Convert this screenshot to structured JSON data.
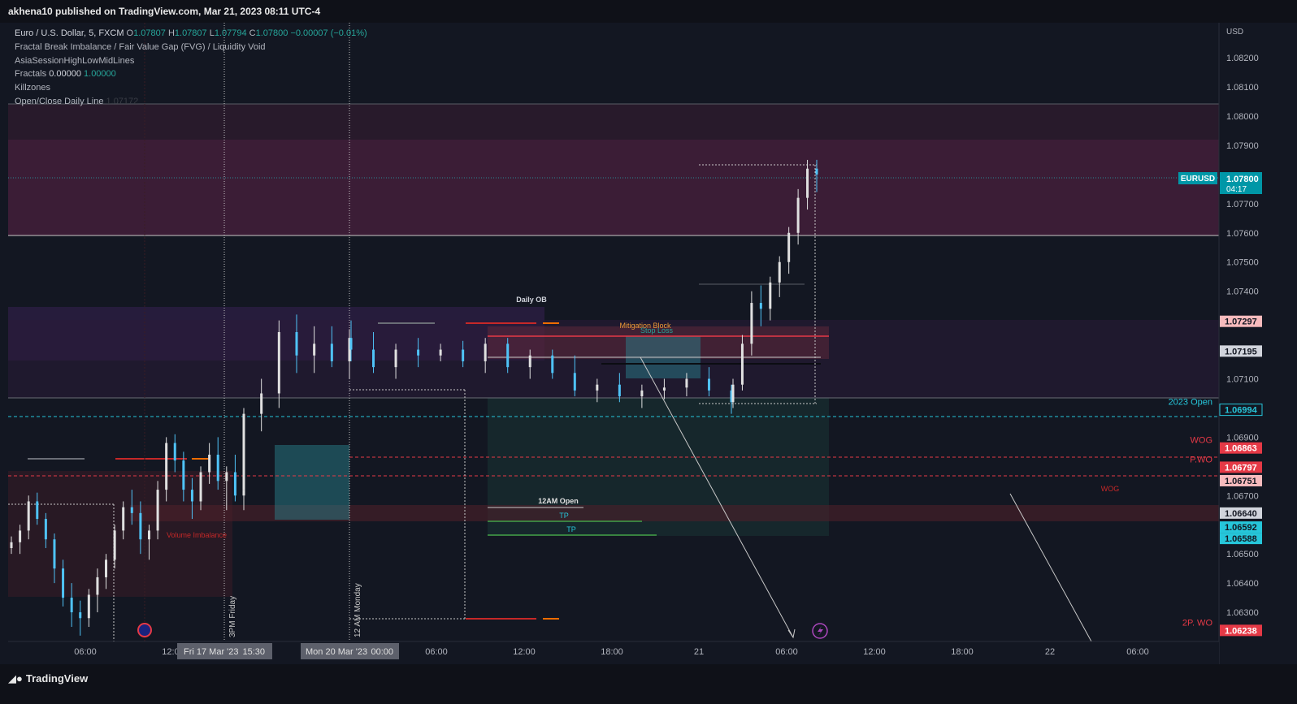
{
  "header": {
    "publisher_text": "akhena10 published on TradingView.com, Mar 21, 2023 08:11 UTC-4"
  },
  "legend": {
    "symbol_name": "Euro / U.S. Dollar, 5, FXCM",
    "o_label": "O",
    "o_value": "1.07807",
    "h_label": "H",
    "h_value": "1.07807",
    "l_label": "L",
    "l_value": "1.07794",
    "c_label": "C",
    "c_value": "1.07800",
    "change": "−0.00007 (−0.01%)",
    "indicators": [
      "Fractal Break Imbalance / Fair Value Gap (FVG) / Liquidity Void",
      "AsiaSessionHighLowMidLines"
    ],
    "fractals_label": "Fractals",
    "fractals_value1": "0.00000",
    "fractals_value2": "1.00000",
    "killzones_label": "Killzones",
    "open_close_label": "Open/Close Daily Line",
    "open_close_value": "1.07172"
  },
  "footer": {
    "logo_text": "TradingView"
  },
  "colors": {
    "background": "#131722",
    "bullish": "#26a69a",
    "candle_blue": "#4fc3f7",
    "zone_purple": "#5b2a52",
    "zone_red": "#7a2230",
    "price_badge": "#0097a7",
    "red_badge": "#e53946"
  },
  "chart_data": {
    "type": "candlestick",
    "title": "",
    "axis_currency": "USD",
    "symbol_badge": "EURUSD",
    "last_price": "1.07800",
    "countdown": "04:17",
    "ylim": [
      1.062,
      1.0832
    ],
    "y_ticks": [
      "1.08200",
      "1.08100",
      "1.08000",
      "1.07900",
      "1.07700",
      "1.07600",
      "1.07500",
      "1.07400",
      "1.07100",
      "1.06900",
      "1.06700",
      "1.06500",
      "1.06400",
      "1.06300"
    ],
    "x_ticks": [
      "06:00",
      "12:00",
      "15:30",
      "00:00",
      "06:00",
      "12:00",
      "18:00",
      "21",
      "06:00",
      "12:00",
      "18:00",
      "22",
      "06:00"
    ],
    "x_time_labels": [
      {
        "label": "Fri 17 Mar '23",
        "time": "15:30"
      },
      {
        "label": "Mon 20 Mar '23",
        "time": "00:00"
      }
    ],
    "price_labels": [
      {
        "value": "1.07297",
        "price": 1.07297,
        "kind": "pink"
      },
      {
        "value": "1.07195",
        "price": 1.07195,
        "kind": "gray"
      },
      {
        "value": "1.06994",
        "price": 1.06994,
        "kind": "teal",
        "name": "2023 Open"
      },
      {
        "value": "1.06863",
        "price": 1.06863,
        "kind": "red",
        "name": "WOG"
      },
      {
        "value": "1.06797",
        "price": 1.06797,
        "kind": "red",
        "name": "P.WO"
      },
      {
        "value": "1.06751",
        "price": 1.06751,
        "kind": "pink"
      },
      {
        "value": "1.06640",
        "price": 1.0664,
        "kind": "gray"
      },
      {
        "value": "1.06592",
        "price": 1.06592,
        "kind": "cyan"
      },
      {
        "value": "1.06588",
        "price": 1.06588,
        "kind": "cyan"
      },
      {
        "value": "1.06238",
        "price": 1.06238,
        "kind": "red",
        "name": "2P. WO"
      }
    ],
    "annotations": {
      "daily_ob": "Daily OB",
      "mitigation_block": "Mitigation Block",
      "stop_loss": "Stop Loss",
      "twelve_am_open": "12AM Open",
      "tp1": "TP",
      "tp2": "TP",
      "volume_imbalance": "Volume Imbalance",
      "wog_zone": "WOG",
      "friday_label": "3PM Friday",
      "monday_label": "12 AM Monday"
    },
    "series": [
      {
        "ohlc": [
          [
            1.0652,
            1.0656,
            1.065,
            1.0654
          ],
          [
            1.0654,
            1.066,
            1.065,
            1.0658
          ],
          [
            1.0658,
            1.067,
            1.0655,
            1.0668
          ],
          [
            1.0668,
            1.0671,
            1.066,
            1.0662
          ],
          [
            1.0662,
            1.0664,
            1.0652,
            1.0655
          ],
          [
            1.0655,
            1.0657,
            1.064,
            1.0645
          ],
          [
            1.0645,
            1.0648,
            1.0632,
            1.0635
          ],
          [
            1.0635,
            1.064,
            1.0625,
            1.063
          ],
          [
            1.063,
            1.0634,
            1.0622,
            1.0628
          ],
          [
            1.0628,
            1.0638,
            1.0625,
            1.0636
          ],
          [
            1.0636,
            1.0645,
            1.063,
            1.0642
          ],
          [
            1.0642,
            1.065,
            1.0638,
            1.0648
          ],
          [
            1.0648,
            1.066,
            1.0645,
            1.0658
          ],
          [
            1.0658,
            1.0668,
            1.0655,
            1.0666
          ],
          [
            1.0666,
            1.0672,
            1.066,
            1.0664
          ],
          [
            1.0664,
            1.0668,
            1.065,
            1.0655
          ],
          [
            1.0655,
            1.066,
            1.0648,
            1.0658
          ],
          [
            1.0658,
            1.0675,
            1.0655,
            1.0672
          ],
          [
            1.0672,
            1.069,
            1.0668,
            1.0688
          ],
          [
            1.0688,
            1.0691,
            1.0678,
            1.0682
          ],
          [
            1.0682,
            1.0685,
            1.0668,
            1.0672
          ],
          [
            1.0672,
            1.0676,
            1.0662,
            1.0668
          ],
          [
            1.0668,
            1.068,
            1.0665,
            1.0678
          ],
          [
            1.0678,
            1.0688,
            1.0674,
            1.0684
          ],
          [
            1.0684,
            1.069,
            1.0672,
            1.0675
          ],
          [
            1.0675,
            1.068,
            1.0665,
            1.0678
          ],
          [
            1.0678,
            1.0684,
            1.0668,
            1.067
          ],
          [
            1.067,
            1.0676,
            1.0665,
            1.0672
          ],
          [
            1.0672,
            1.07,
            1.067,
            1.0698
          ],
          [
            1.0698,
            1.071,
            1.0692,
            1.0705
          ],
          [
            1.0705,
            1.073,
            1.07,
            1.0726
          ],
          [
            1.0726,
            1.0732,
            1.0712,
            1.0718
          ],
          [
            1.0718,
            1.0728,
            1.0712,
            1.0722
          ],
          [
            1.0722,
            1.0728,
            1.0714,
            1.0716
          ],
          [
            1.0716,
            1.0727,
            1.071,
            1.0724
          ],
          [
            1.0724,
            1.073,
            1.0716,
            1.072
          ],
          [
            1.072,
            1.0726,
            1.0712,
            1.0714
          ],
          [
            1.0714,
            1.0722,
            1.071,
            1.072
          ],
          [
            1.072,
            1.0724,
            1.0714,
            1.0718
          ],
          [
            1.0718,
            1.0722,
            1.0716,
            1.072
          ],
          [
            1.072,
            1.0723,
            1.0714,
            1.0716
          ],
          [
            1.0716,
            1.0724,
            1.0712,
            1.0722
          ],
          [
            1.0722,
            1.0724,
            1.0712,
            1.0714
          ],
          [
            1.0714,
            1.072,
            1.071,
            1.0718
          ],
          [
            1.0718,
            1.072,
            1.071,
            1.0712
          ],
          [
            1.0712,
            1.0718,
            1.0704,
            1.0706
          ],
          [
            1.0706,
            1.071,
            1.0702,
            1.0708
          ],
          [
            1.0708,
            1.0712,
            1.0702,
            1.0704
          ],
          [
            1.0704,
            1.0708,
            1.07,
            1.0706
          ],
          [
            1.0706,
            1.071,
            1.0703,
            1.0707
          ],
          [
            1.0707,
            1.0712,
            1.0704,
            1.071
          ],
          [
            1.071,
            1.0714,
            1.0704,
            1.0706
          ],
          [
            1.0706,
            1.0708,
            1.0698,
            1.0702
          ],
          [
            1.0702,
            1.071,
            1.07,
            1.0708
          ],
          [
            1.0708,
            1.0725,
            1.0706,
            1.0722
          ],
          [
            1.0722,
            1.074,
            1.0718,
            1.0736
          ],
          [
            1.0736,
            1.0742,
            1.0728,
            1.0734
          ],
          [
            1.0734,
            1.0745,
            1.073,
            1.0743
          ],
          [
            1.0743,
            1.0752,
            1.0738,
            1.075
          ],
          [
            1.075,
            1.0762,
            1.0746,
            1.076
          ],
          [
            1.076,
            1.0775,
            1.0756,
            1.0772
          ],
          [
            1.0772,
            1.0785,
            1.0768,
            1.0782
          ],
          [
            1.0782,
            1.0785,
            1.0774,
            1.078
          ]
        ]
      }
    ]
  }
}
